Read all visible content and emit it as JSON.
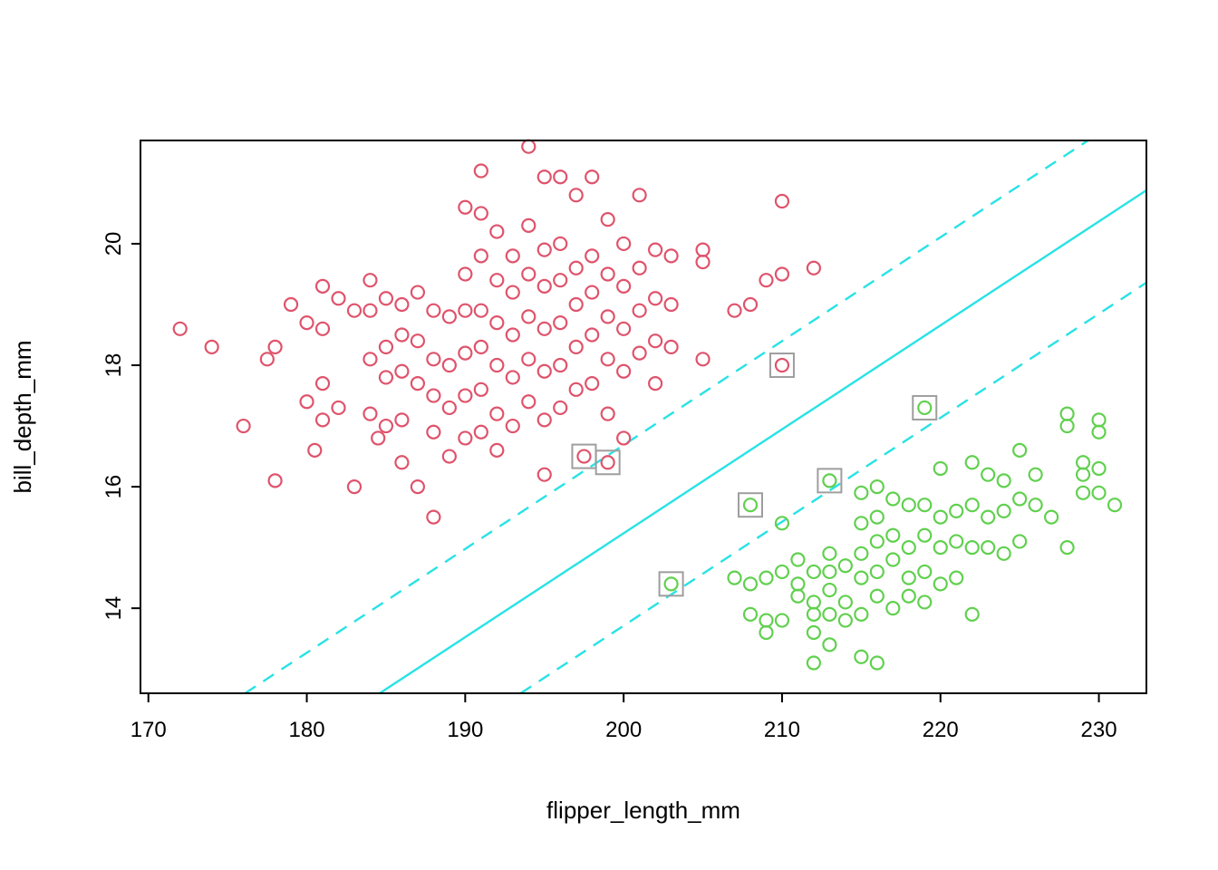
{
  "figure": {
    "background": "#ffffff",
    "text_color": "#000000",
    "box_color": "#000000"
  },
  "chart_data": {
    "type": "scatter",
    "title": "",
    "xlabel": "flipper_length_mm",
    "ylabel": "bill_depth_mm",
    "xlim": [
      169.5,
      233.0
    ],
    "ylim": [
      12.6,
      21.7
    ],
    "xticks": [
      170,
      180,
      190,
      200,
      210,
      220,
      230
    ],
    "yticks": [
      14,
      16,
      18,
      20
    ],
    "grid": false,
    "legend": "none",
    "series": [
      {
        "name": "class-red",
        "marker": "open-circle",
        "color": "#DF536B",
        "points": [
          [
            172,
            18.6
          ],
          [
            174,
            18.3
          ],
          [
            176,
            17.0
          ],
          [
            177.5,
            18.1
          ],
          [
            178,
            18.3
          ],
          [
            178,
            16.1
          ],
          [
            179,
            19.0
          ],
          [
            180,
            18.7
          ],
          [
            180,
            17.4
          ],
          [
            180.5,
            16.6
          ],
          [
            181,
            19.3
          ],
          [
            181,
            18.6
          ],
          [
            181,
            17.7
          ],
          [
            181,
            17.1
          ],
          [
            182,
            19.1
          ],
          [
            182,
            17.3
          ],
          [
            183,
            18.9
          ],
          [
            183,
            16.0
          ],
          [
            184,
            19.4
          ],
          [
            184,
            18.9
          ],
          [
            184,
            18.1
          ],
          [
            184,
            17.2
          ],
          [
            184.5,
            16.8
          ],
          [
            185,
            19.1
          ],
          [
            185,
            18.3
          ],
          [
            185,
            17.8
          ],
          [
            185,
            17.0
          ],
          [
            186,
            19.0
          ],
          [
            186,
            18.5
          ],
          [
            186,
            17.9
          ],
          [
            186,
            17.1
          ],
          [
            186,
            16.4
          ],
          [
            187,
            19.2
          ],
          [
            187,
            18.4
          ],
          [
            187,
            17.7
          ],
          [
            187,
            16.0
          ],
          [
            188,
            18.9
          ],
          [
            188,
            18.1
          ],
          [
            188,
            17.5
          ],
          [
            188,
            16.9
          ],
          [
            188,
            15.5
          ],
          [
            189,
            18.8
          ],
          [
            189,
            18.0
          ],
          [
            189,
            17.3
          ],
          [
            189,
            16.5
          ],
          [
            190,
            20.6
          ],
          [
            190,
            19.5
          ],
          [
            190,
            18.9
          ],
          [
            190,
            18.2
          ],
          [
            190,
            17.5
          ],
          [
            190,
            16.8
          ],
          [
            191,
            21.2
          ],
          [
            191,
            20.5
          ],
          [
            191,
            19.8
          ],
          [
            191,
            18.9
          ],
          [
            191,
            18.3
          ],
          [
            191,
            17.6
          ],
          [
            191,
            16.9
          ],
          [
            192,
            20.2
          ],
          [
            192,
            19.4
          ],
          [
            192,
            18.7
          ],
          [
            192,
            18.0
          ],
          [
            192,
            17.2
          ],
          [
            192,
            16.6
          ],
          [
            193,
            19.8
          ],
          [
            193,
            19.2
          ],
          [
            193,
            18.5
          ],
          [
            193,
            17.8
          ],
          [
            193,
            17.0
          ],
          [
            194,
            21.6
          ],
          [
            194,
            20.3
          ],
          [
            194,
            19.5
          ],
          [
            194,
            18.8
          ],
          [
            194,
            18.1
          ],
          [
            194,
            17.4
          ],
          [
            195,
            21.1
          ],
          [
            195,
            19.9
          ],
          [
            195,
            19.3
          ],
          [
            195,
            18.6
          ],
          [
            195,
            17.9
          ],
          [
            195,
            17.1
          ],
          [
            195,
            16.2
          ],
          [
            196,
            21.1
          ],
          [
            196,
            20.0
          ],
          [
            196,
            19.4
          ],
          [
            196,
            18.7
          ],
          [
            196,
            18.0
          ],
          [
            196,
            17.3
          ],
          [
            197,
            20.8
          ],
          [
            197,
            19.6
          ],
          [
            197,
            19.0
          ],
          [
            197,
            18.3
          ],
          [
            197,
            17.6
          ],
          [
            197.5,
            16.5
          ],
          [
            198,
            21.1
          ],
          [
            198,
            19.8
          ],
          [
            198,
            19.2
          ],
          [
            198,
            18.5
          ],
          [
            198,
            17.7
          ],
          [
            199,
            20.4
          ],
          [
            199,
            19.5
          ],
          [
            199,
            18.8
          ],
          [
            199,
            18.1
          ],
          [
            199,
            17.2
          ],
          [
            199,
            16.4
          ],
          [
            200,
            20.0
          ],
          [
            200,
            19.3
          ],
          [
            200,
            18.6
          ],
          [
            200,
            17.9
          ],
          [
            200,
            16.8
          ],
          [
            201,
            20.8
          ],
          [
            201,
            19.6
          ],
          [
            201,
            18.9
          ],
          [
            201,
            18.2
          ],
          [
            202,
            19.9
          ],
          [
            202,
            19.1
          ],
          [
            202,
            18.4
          ],
          [
            202,
            17.7
          ],
          [
            203,
            19.8
          ],
          [
            203,
            19.0
          ],
          [
            203,
            18.3
          ],
          [
            205,
            19.9
          ],
          [
            205,
            19.7
          ],
          [
            205,
            18.1
          ],
          [
            207,
            18.9
          ],
          [
            208,
            19.0
          ],
          [
            209,
            19.4
          ],
          [
            210,
            20.7
          ],
          [
            210,
            19.5
          ],
          [
            210,
            18.0
          ],
          [
            212,
            19.6
          ]
        ]
      },
      {
        "name": "class-green",
        "marker": "open-circle",
        "color": "#61D04F",
        "points": [
          [
            203,
            14.4
          ],
          [
            207,
            14.5
          ],
          [
            208,
            15.7
          ],
          [
            208,
            14.4
          ],
          [
            208,
            13.9
          ],
          [
            209,
            14.5
          ],
          [
            209,
            13.8
          ],
          [
            209,
            13.6
          ],
          [
            210,
            15.4
          ],
          [
            210,
            14.6
          ],
          [
            210,
            13.8
          ],
          [
            211,
            14.8
          ],
          [
            211,
            14.4
          ],
          [
            211,
            14.2
          ],
          [
            212,
            14.6
          ],
          [
            212,
            14.1
          ],
          [
            212,
            13.9
          ],
          [
            212,
            13.6
          ],
          [
            212,
            13.1
          ],
          [
            213,
            16.1
          ],
          [
            213,
            14.9
          ],
          [
            213,
            14.6
          ],
          [
            213,
            14.3
          ],
          [
            213,
            13.9
          ],
          [
            213,
            13.4
          ],
          [
            214,
            14.7
          ],
          [
            214,
            14.1
          ],
          [
            214,
            13.8
          ],
          [
            215,
            15.9
          ],
          [
            215,
            15.4
          ],
          [
            215,
            14.9
          ],
          [
            215,
            14.5
          ],
          [
            215,
            13.9
          ],
          [
            215,
            13.2
          ],
          [
            216,
            16.0
          ],
          [
            216,
            15.5
          ],
          [
            216,
            15.1
          ],
          [
            216,
            14.6
          ],
          [
            216,
            14.2
          ],
          [
            216,
            13.1
          ],
          [
            217,
            15.8
          ],
          [
            217,
            15.2
          ],
          [
            217,
            14.8
          ],
          [
            217,
            14.0
          ],
          [
            218,
            15.7
          ],
          [
            218,
            15.0
          ],
          [
            218,
            14.5
          ],
          [
            218,
            14.2
          ],
          [
            219,
            17.3
          ],
          [
            219,
            15.7
          ],
          [
            219,
            15.2
          ],
          [
            219,
            14.6
          ],
          [
            219,
            14.1
          ],
          [
            220,
            16.3
          ],
          [
            220,
            15.5
          ],
          [
            220,
            15.0
          ],
          [
            220,
            14.4
          ],
          [
            221,
            15.6
          ],
          [
            221,
            15.1
          ],
          [
            221,
            14.5
          ],
          [
            222,
            16.4
          ],
          [
            222,
            15.7
          ],
          [
            222,
            15.0
          ],
          [
            222,
            13.9
          ],
          [
            223,
            16.2
          ],
          [
            223,
            15.5
          ],
          [
            223,
            15.0
          ],
          [
            224,
            16.1
          ],
          [
            224,
            15.6
          ],
          [
            224,
            14.9
          ],
          [
            225,
            16.6
          ],
          [
            225,
            15.8
          ],
          [
            225,
            15.1
          ],
          [
            226,
            16.2
          ],
          [
            226,
            15.7
          ],
          [
            227,
            15.5
          ],
          [
            228,
            17.2
          ],
          [
            228,
            17.0
          ],
          [
            228,
            15.0
          ],
          [
            229,
            16.4
          ],
          [
            229,
            16.2
          ],
          [
            229,
            15.9
          ],
          [
            230,
            17.1
          ],
          [
            230,
            16.9
          ],
          [
            230,
            16.3
          ],
          [
            230,
            15.9
          ],
          [
            231,
            15.7
          ]
        ]
      }
    ],
    "support_vectors": {
      "marker": "open-square",
      "color": "#9E9E9E",
      "points": [
        [
          197.5,
          16.5
        ],
        [
          199,
          16.4
        ],
        [
          210,
          18.0
        ],
        [
          203,
          14.4
        ],
        [
          208,
          15.7
        ],
        [
          213,
          16.1
        ],
        [
          219,
          17.3
        ]
      ]
    },
    "decision_boundary": {
      "color": "#28E2E5",
      "solid": [
        [
          184.6,
          12.6
        ],
        [
          233.0,
          20.88
        ]
      ],
      "dashed": [
        [
          [
            176.1,
            12.6
          ],
          [
            233.0,
            22.33
          ]
        ],
        [
          [
            193.5,
            12.6
          ],
          [
            233.0,
            19.36
          ]
        ]
      ]
    }
  }
}
